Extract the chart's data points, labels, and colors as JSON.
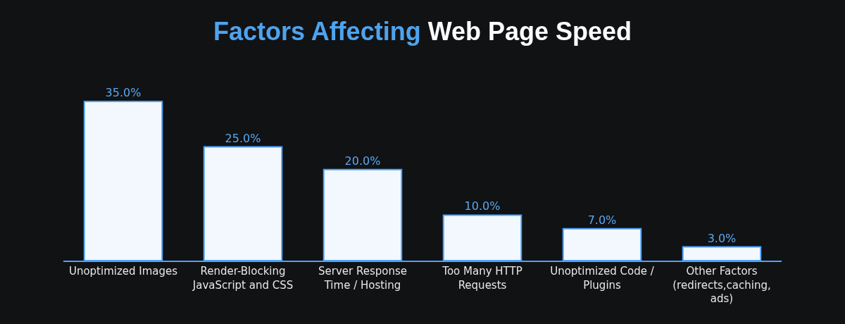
{
  "chart_data": {
    "type": "bar",
    "title": "Factors Affecting Web Page Speed",
    "categories": [
      "Unoptimized Images",
      "Render-Blocking JavaScript and CSS",
      "Server Response Time / Hosting",
      "Too Many HTTP Requests",
      "Unoptimized Code / Plugins",
      "Other Factors (redirects,caching, ads)"
    ],
    "values": [
      35.0,
      25.0,
      20.0,
      10.0,
      7.0,
      3.0
    ],
    "value_labels": [
      "35.0%",
      "25.0%",
      "20.0%",
      "10.0%",
      "7.0%",
      "3.0%"
    ],
    "color": "#f3f8ff",
    "grid": false,
    "legend": false
  }
}
